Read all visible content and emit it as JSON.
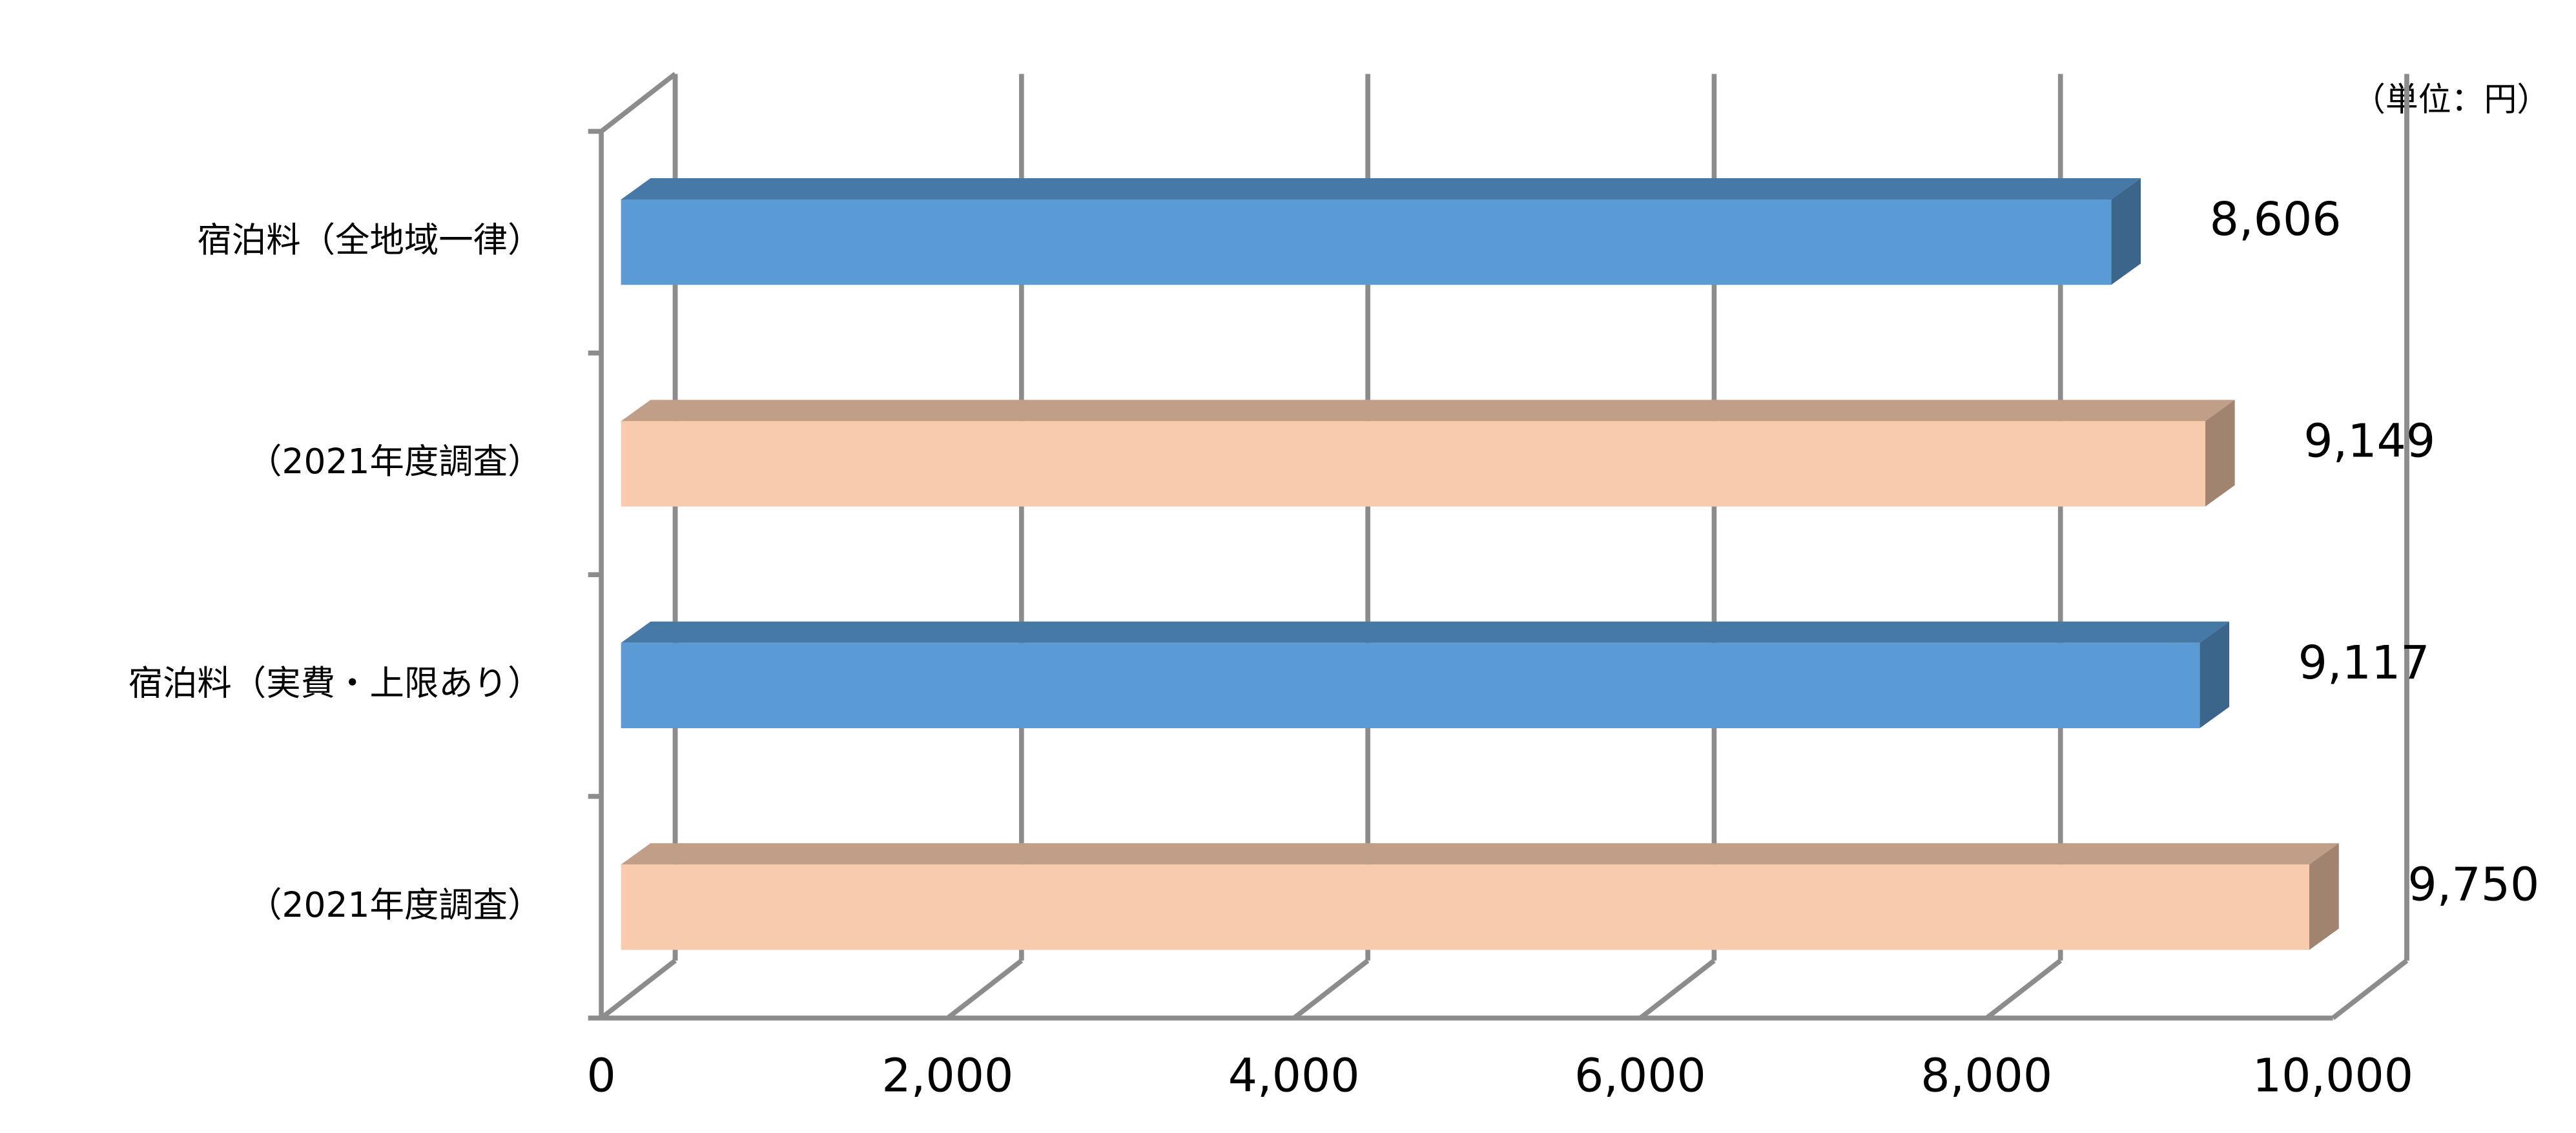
{
  "chart_data": {
    "type": "bar3d-horizontal",
    "annotation": "（単位：円）",
    "categories": [
      "宿泊料（全地域一律）",
      "（2021年度調査）",
      "宿泊料（実費・上限あり）",
      "（2021年度調査）"
    ],
    "values": [
      8606,
      9149,
      9117,
      9750
    ],
    "value_labels": [
      "8,606",
      "9,149",
      "9,117",
      "9,750"
    ],
    "colors": [
      "#5b9bd5",
      "#f8cbad",
      "#5b9bd5",
      "#f8cbad"
    ],
    "xlim": [
      0,
      10000
    ],
    "xticks": [
      0,
      {
        "value": 2000,
        "label": "2,000"
      },
      {
        "value": 4000,
        "label": "4,000"
      },
      {
        "value": 6000,
        "label": "6,000"
      },
      {
        "value": 8000,
        "label": "8,000"
      },
      {
        "value": 10000,
        "label": "10,000"
      }
    ],
    "grid": true
  }
}
